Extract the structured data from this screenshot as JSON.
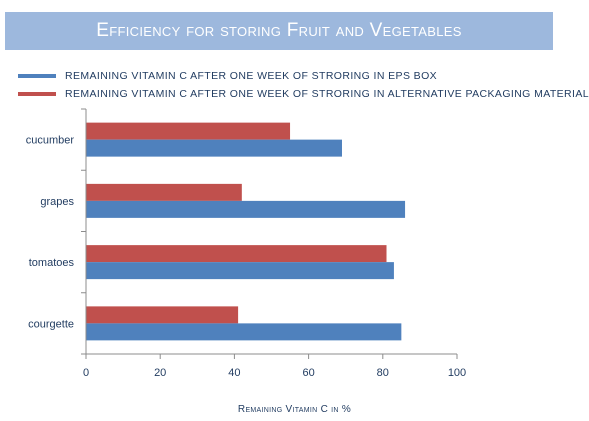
{
  "chart_data": {
    "type": "bar",
    "orientation": "horizontal",
    "title": "Efficiency for storing Fruit and Vegetables",
    "xlabel": "Remaining Vitamin C in %",
    "ylabel": "",
    "categories": [
      "cucumber",
      "grapes",
      "tomatoes",
      "courgette"
    ],
    "series": [
      {
        "name": "REMAINING VITAMIN C AFTER ONE WEEK OF STRORING IN EPS BOX",
        "color": "#4f81bd",
        "values": [
          69,
          86,
          83,
          85
        ]
      },
      {
        "name": "REMAINING VITAMIN C AFTER ONE WEEK OF STRORING IN ALTERNATIVE  PACKAGING MATERIAL",
        "color": "#c0504d",
        "values": [
          55,
          42,
          81,
          41
        ]
      }
    ],
    "xlim": [
      0,
      100
    ],
    "xticks": [
      "0",
      "20",
      "40",
      "60",
      "80",
      "100"
    ],
    "grid": false,
    "legend_position": "top-left"
  }
}
